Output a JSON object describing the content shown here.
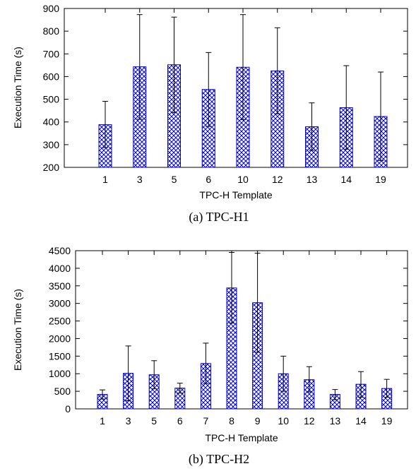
{
  "chart_data": [
    {
      "type": "bar",
      "caption": "(a) TPC-H1",
      "xlabel": "TPC-H Template",
      "ylabel": "Execution Time (s)",
      "ylim": [
        200,
        900
      ],
      "yticks": [
        200,
        300,
        400,
        500,
        600,
        700,
        800,
        900
      ],
      "categories": [
        "1",
        "3",
        "5",
        "6",
        "10",
        "12",
        "13",
        "14",
        "19"
      ],
      "values": [
        388,
        643,
        652,
        543,
        641,
        625,
        379,
        463,
        424
      ],
      "error_low": [
        287,
        412,
        441,
        380,
        410,
        436,
        275,
        280,
        230
      ],
      "error_high": [
        491,
        873,
        862,
        706,
        873,
        815,
        484,
        648,
        620
      ],
      "grid": false,
      "legend": "none",
      "bar_fill": "#0000cc",
      "bar_pattern": "crosshatch"
    },
    {
      "type": "bar",
      "caption": "(b) TPC-H2",
      "xlabel": "TPC-H Template",
      "ylabel": "Execution Time (s)",
      "ylim": [
        0,
        4500
      ],
      "yticks": [
        0,
        500,
        1000,
        1500,
        2000,
        2500,
        3000,
        3500,
        4000,
        4500
      ],
      "categories": [
        "1",
        "3",
        "5",
        "6",
        "7",
        "8",
        "9",
        "10",
        "12",
        "13",
        "14",
        "19"
      ],
      "values": [
        410,
        1010,
        970,
        590,
        1290,
        3440,
        3020,
        1000,
        830,
        410,
        700,
        580
      ],
      "error_low": [
        280,
        230,
        570,
        450,
        720,
        2440,
        1610,
        500,
        480,
        260,
        330,
        330
      ],
      "error_high": [
        540,
        1790,
        1370,
        730,
        1870,
        4450,
        4430,
        1500,
        1200,
        550,
        1060,
        840
      ],
      "grid": false,
      "legend": "none",
      "bar_fill": "#0000cc",
      "bar_pattern": "crosshatch"
    }
  ]
}
